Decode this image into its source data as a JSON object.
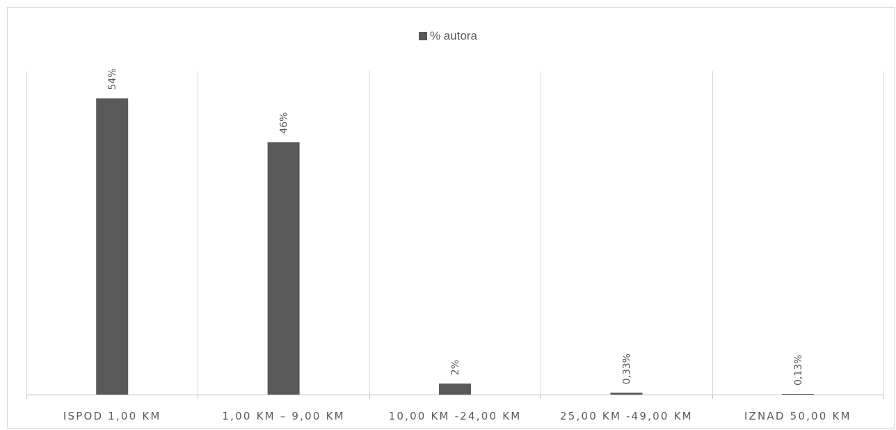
{
  "chart_data": {
    "type": "bar",
    "title": "",
    "xlabel": "",
    "ylabel": "",
    "categories": [
      "ISPOD 1,00 KM",
      "1,00 KM – 9,00 KM",
      "10,00 KM -24,00 KM",
      "25,00 KM -49,00 KM",
      "IZNAD 50,00 KM"
    ],
    "series": [
      {
        "name": "% autora",
        "values": [
          54,
          46,
          2,
          0.33,
          0.13
        ],
        "data_labels": [
          "54%",
          "46%",
          "2%",
          "0,33%",
          "0,13%"
        ]
      }
    ],
    "ylim": [
      0,
      59
    ],
    "legend_position": "top",
    "grid": "vertical category separators",
    "bar_color": "#595959",
    "grid_color": "#d9d9d9",
    "axis_color": "#bfbfbf"
  }
}
